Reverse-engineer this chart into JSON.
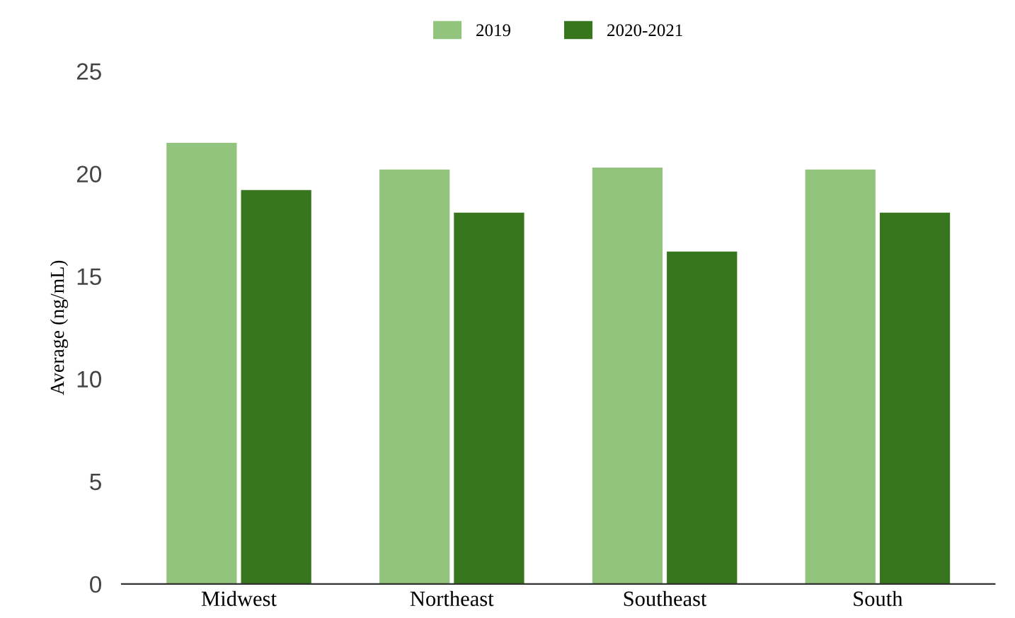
{
  "chart_data": {
    "type": "bar",
    "ylabel": "Average (ng/mL)",
    "categories": [
      "Midwest",
      "Northeast",
      "Southeast",
      "South"
    ],
    "series": [
      {
        "name": "2019",
        "color": "#93c47d",
        "values": [
          21.5,
          20.2,
          20.3,
          20.2
        ]
      },
      {
        "name": "2020-2021",
        "color": "#38761d",
        "values": [
          19.2,
          18.1,
          16.2,
          18.1
        ]
      }
    ],
    "ylim": [
      0,
      25
    ],
    "yticks": [
      0,
      5,
      10,
      15,
      20,
      25
    ],
    "grid": false,
    "legend": "top"
  }
}
